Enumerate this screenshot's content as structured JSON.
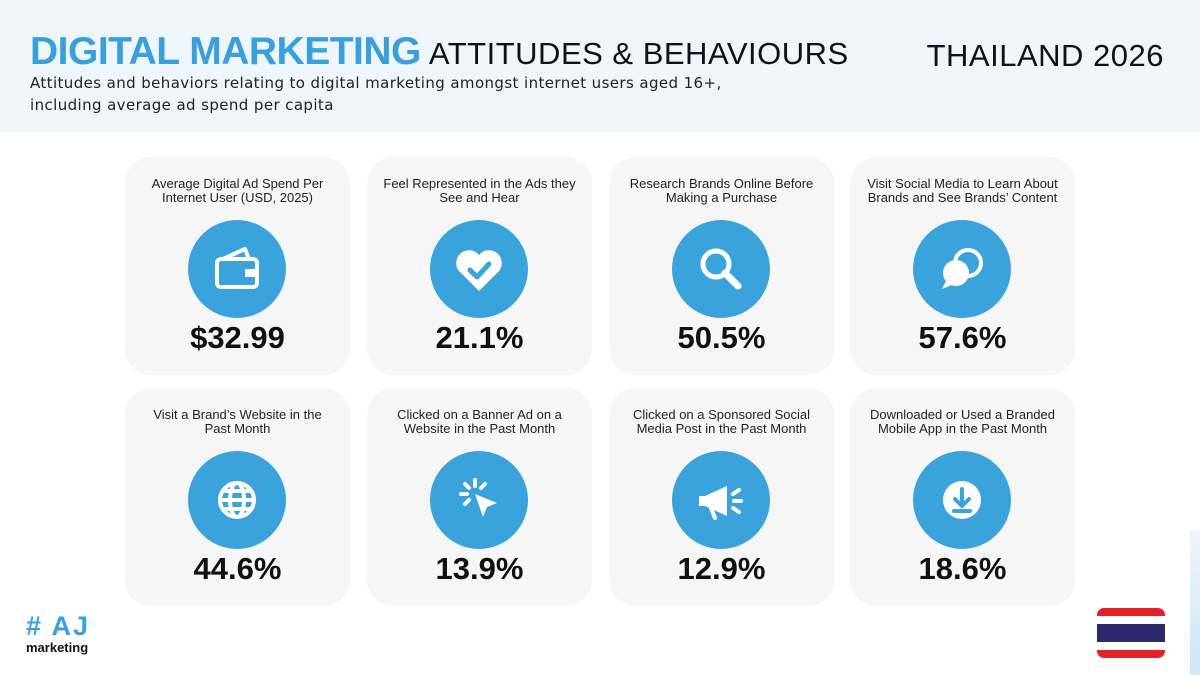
{
  "header": {
    "title_main": "DIGITAL MARKETING",
    "title_sub": "ATTITUDES & BEHAVIOURS",
    "subtitle": "Attitudes and behaviors relating to digital marketing amongst internet users aged 16+, including average ad spend per capita",
    "country": "THAILAND 2026"
  },
  "cards": [
    {
      "label": "Average Digital Ad Spend Per Internet User (USD, 2025)",
      "value": "$32.99"
    },
    {
      "label": "Feel Represented in the Ads they See and Hear",
      "value": "21.1%"
    },
    {
      "label": "Research Brands Online Before Making a Purchase",
      "value": "50.5%"
    },
    {
      "label": "Visit Social Media to Learn About Brands and See Brands’ Content",
      "value": "57.6%"
    },
    {
      "label": "Visit a Brand’s Website in the Past Month",
      "value": "44.6%"
    },
    {
      "label": "Clicked on a Banner Ad on a Website in the Past Month",
      "value": "13.9%"
    },
    {
      "label": "Clicked on a Sponsored Social Media Post in the Past Month",
      "value": "12.9%"
    },
    {
      "label": "Downloaded or Used a Branded Mobile App in the Past Month",
      "value": "18.6%"
    }
  ],
  "logo": {
    "mark": "# AJ",
    "text": "marketing"
  }
}
